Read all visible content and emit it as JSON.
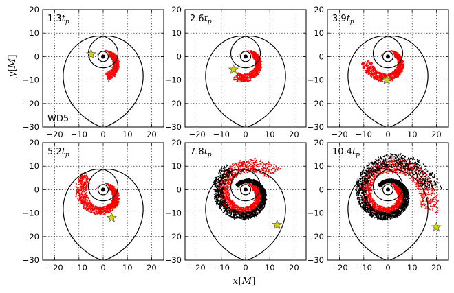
{
  "figure": {
    "xlabel_var": "x",
    "xlabel_unit": "M",
    "ylabel_var": "y",
    "ylabel_unit": "M"
  },
  "chart_data": {
    "type": "scatter",
    "rows": 2,
    "cols": 3,
    "xlim": [
      -25,
      25
    ],
    "ylim": [
      -30,
      20
    ],
    "xticks": [
      -20,
      -10,
      0,
      10,
      20
    ],
    "yticks": [
      -30,
      -20,
      -10,
      0,
      10,
      20
    ],
    "grid": true,
    "colors": {
      "ejecta_red": "#ff0000",
      "ejecta_black": "#000000",
      "marker_star": "#d4d400",
      "trajectory": "#000000"
    },
    "panels": [
      {
        "time_num": "1.3",
        "time_sym": "t",
        "time_sub": "p",
        "star": [
          -5,
          1
        ],
        "label": "WD5",
        "extent": 0.8,
        "red_span": 4.3,
        "black_span": 0
      },
      {
        "time_num": "2.6",
        "time_sym": "t",
        "time_sub": "p",
        "star": [
          -5,
          -5.5
        ],
        "label": "",
        "extent": 1.35,
        "red_span": 4.6,
        "black_span": 0
      },
      {
        "time_num": "3.9",
        "time_sym": "t",
        "time_sub": "p",
        "star": [
          -0.5,
          -10
        ],
        "label": "",
        "extent": 2.0,
        "red_span": 5.6,
        "black_span": 0
      },
      {
        "time_num": "5.2",
        "time_sym": "t",
        "time_sub": "p",
        "star": [
          3.5,
          -12
        ],
        "label": "",
        "extent": 2.6,
        "red_span": 6.6,
        "black_span": 0
      },
      {
        "time_num": "7.8",
        "time_sym": "t",
        "time_sub": "p",
        "star": [
          13,
          -15
        ],
        "label": "",
        "extent": 3.7,
        "red_span": 8.0,
        "black_span": 6.5
      },
      {
        "time_num": "10.4",
        "time_sym": "t",
        "time_sub": "p",
        "star": [
          20,
          -16
        ],
        "label": "",
        "extent": 4.7,
        "red_span": 9.0,
        "black_span": 8.5
      }
    ]
  }
}
